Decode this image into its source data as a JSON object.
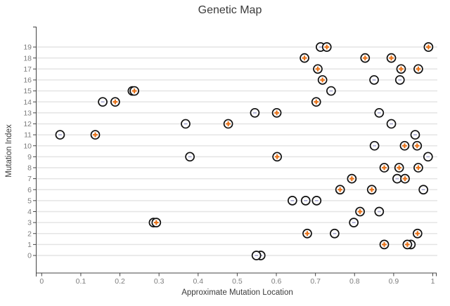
{
  "title": "Genetic Map",
  "colors": {
    "background": "#ffffff",
    "grid": "#e4e4e4",
    "axis": "#444444",
    "tick_label": "#7d7d7d",
    "text": "#3b3b3b",
    "marker_stroke": "#111111",
    "marker_fill": "#ffffff",
    "plus": "#e8731a",
    "minus": "#a8a8cf"
  },
  "chart_data": {
    "type": "scatter",
    "title": "Genetic Map",
    "xlabel": "Approximate Mutation Location",
    "ylabel": "Mutation Index",
    "xlim": [
      0,
      1
    ],
    "ylim": [
      0,
      19
    ],
    "grid": "horizontal-only",
    "legend": "none",
    "x_ticks": {
      "values": [
        0,
        0.1,
        0.2,
        0.3,
        0.4,
        0.5,
        0.6,
        0.7,
        0.8,
        0.9,
        1
      ],
      "labels": [
        "0",
        "0.1",
        "0.2",
        "0.3",
        "0.4",
        "0.5",
        "0.6",
        "0.7",
        "0.8",
        "0.9",
        "1"
      ]
    },
    "y_ticks": {
      "values": [
        0,
        1,
        2,
        3,
        4,
        5,
        6,
        7,
        8,
        9,
        10,
        11,
        12,
        13,
        14,
        15,
        16,
        17,
        18,
        19
      ],
      "labels": [
        "0",
        "1",
        "2",
        "3",
        "4",
        "5",
        "6",
        "7",
        "8",
        "9",
        "10",
        "11",
        "12",
        "13",
        "14",
        "15",
        "16",
        "17",
        "18",
        "19"
      ]
    },
    "points_format": [
      "x_location",
      "mutation_index",
      "sign"
    ],
    "points": [
      [
        0.56,
        0,
        "-"
      ],
      [
        0.549,
        0,
        "-"
      ],
      [
        0.876,
        1,
        "+"
      ],
      [
        0.944,
        1,
        "-"
      ],
      [
        0.935,
        1,
        "+"
      ],
      [
        0.679,
        2,
        "+"
      ],
      [
        0.749,
        2,
        "-"
      ],
      [
        0.961,
        2,
        "+"
      ],
      [
        0.286,
        3,
        "-"
      ],
      [
        0.293,
        3,
        "+"
      ],
      [
        0.798,
        3,
        "-"
      ],
      [
        0.814,
        4,
        "+"
      ],
      [
        0.863,
        4,
        "-"
      ],
      [
        0.641,
        5,
        "-"
      ],
      [
        0.675,
        5,
        "-"
      ],
      [
        0.703,
        5,
        "-"
      ],
      [
        0.763,
        6,
        "+"
      ],
      [
        0.844,
        6,
        "+"
      ],
      [
        0.976,
        6,
        "-"
      ],
      [
        0.793,
        7,
        "+"
      ],
      [
        0.909,
        7,
        "-"
      ],
      [
        0.929,
        7,
        "+"
      ],
      [
        0.876,
        8,
        "+"
      ],
      [
        0.914,
        8,
        "+"
      ],
      [
        0.963,
        8,
        "+"
      ],
      [
        0.379,
        9,
        "-"
      ],
      [
        0.602,
        9,
        "+"
      ],
      [
        0.988,
        9,
        "-"
      ],
      [
        0.851,
        10,
        "-"
      ],
      [
        0.928,
        10,
        "+"
      ],
      [
        0.96,
        10,
        "+"
      ],
      [
        0.047,
        11,
        "-"
      ],
      [
        0.137,
        11,
        "+"
      ],
      [
        0.955,
        11,
        "-"
      ],
      [
        0.368,
        12,
        "-"
      ],
      [
        0.477,
        12,
        "+"
      ],
      [
        0.894,
        12,
        "-"
      ],
      [
        0.545,
        13,
        "-"
      ],
      [
        0.601,
        13,
        "+"
      ],
      [
        0.863,
        13,
        "-"
      ],
      [
        0.156,
        14,
        "-"
      ],
      [
        0.188,
        14,
        "+"
      ],
      [
        0.702,
        14,
        "+"
      ],
      [
        0.232,
        15,
        "-"
      ],
      [
        0.237,
        15,
        "+"
      ],
      [
        0.74,
        15,
        "-"
      ],
      [
        0.718,
        16,
        "+"
      ],
      [
        0.85,
        16,
        "-"
      ],
      [
        0.916,
        16,
        "-"
      ],
      [
        0.706,
        17,
        "+"
      ],
      [
        0.919,
        17,
        "+"
      ],
      [
        0.963,
        17,
        "+"
      ],
      [
        0.672,
        18,
        "+"
      ],
      [
        0.827,
        18,
        "+"
      ],
      [
        0.894,
        18,
        "+"
      ],
      [
        0.713,
        19,
        "-"
      ],
      [
        0.729,
        19,
        "+"
      ],
      [
        0.989,
        19,
        "+"
      ]
    ]
  }
}
